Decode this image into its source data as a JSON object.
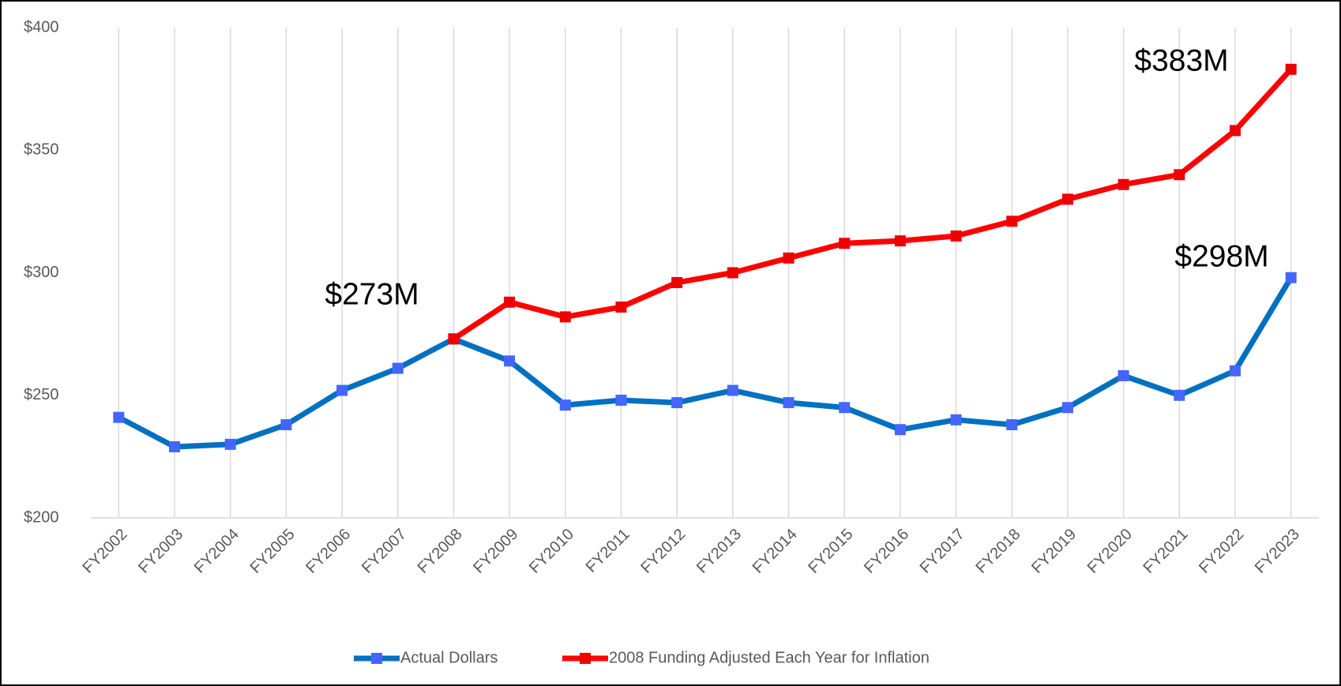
{
  "chart_data": {
    "type": "line",
    "categories": [
      "FY2002",
      "FY2003",
      "FY2004",
      "FY2005",
      "FY2006",
      "FY2007",
      "FY2008",
      "FY2009",
      "FY2010",
      "FY2011",
      "FY2012",
      "FY2013",
      "FY2014",
      "FY2015",
      "FY2016",
      "FY2017",
      "FY2018",
      "FY2019",
      "FY2020",
      "FY2021",
      "FY2022",
      "FY2023"
    ],
    "series": [
      {
        "name": "Actual Dollars",
        "color": "#0070c0",
        "marker_color": "#4466ff",
        "values": [
          241,
          229,
          230,
          238,
          252,
          261,
          273,
          264,
          246,
          248,
          247,
          252,
          247,
          245,
          236,
          240,
          238,
          245,
          258,
          250,
          260,
          298
        ]
      },
      {
        "name": "2008 Funding Adjusted Each Year for Inflation",
        "color": "#ff0000",
        "marker_color": "#ee0000",
        "values": [
          null,
          null,
          null,
          null,
          null,
          null,
          273,
          288,
          282,
          286,
          296,
          300,
          306,
          312,
          313,
          315,
          321,
          330,
          336,
          340,
          358,
          383
        ]
      }
    ],
    "ylim": [
      200,
      400
    ],
    "yticks": [
      {
        "value": 200,
        "label": "$200"
      },
      {
        "value": 250,
        "label": "$250"
      },
      {
        "value": 300,
        "label": "$300"
      },
      {
        "value": 350,
        "label": "$350"
      },
      {
        "value": 400,
        "label": "$400"
      }
    ],
    "annotations": [
      "$273M",
      "$383M",
      "$298M"
    ],
    "legend": "bottom"
  }
}
